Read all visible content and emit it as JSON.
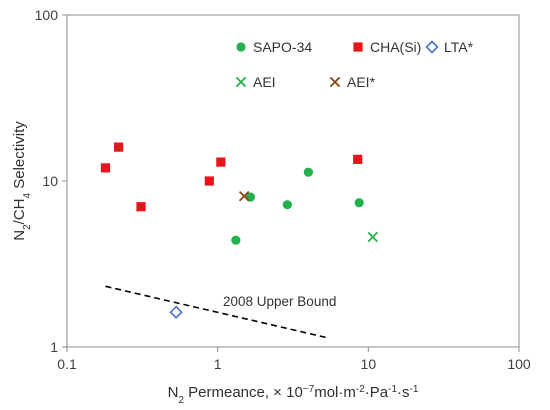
{
  "chart_data": {
    "type": "scatter",
    "x_scale": "log",
    "y_scale": "log",
    "xlim": [
      0.1,
      100
    ],
    "ylim": [
      1,
      100
    ],
    "grid": false,
    "legend_placement": "top-right",
    "x_ticks": [
      "0.1",
      "1",
      "10",
      "100"
    ],
    "y_ticks": [
      "1",
      "10",
      "100"
    ],
    "xlabel_parts": [
      "N",
      "2",
      " Permeance, × 10",
      "−7",
      "mol·m",
      "-2",
      "·Pa",
      "-1",
      "·s",
      "-1"
    ],
    "ylabel_parts": [
      "N",
      "2",
      "/CH",
      "4",
      " Selectivity"
    ],
    "series": [
      {
        "name": "SAPO-34",
        "marker": "circle",
        "color": "#22b14c",
        "points": [
          [
            1.32,
            4.4
          ],
          [
            1.65,
            8.0
          ],
          [
            2.9,
            7.2
          ],
          [
            4.0,
            11.3
          ],
          [
            8.7,
            7.4
          ]
        ]
      },
      {
        "name": "CHA(Si)",
        "marker": "square",
        "color": "#e8141c",
        "points": [
          [
            0.18,
            12.0
          ],
          [
            0.22,
            16.0
          ],
          [
            0.31,
            7.0
          ],
          [
            0.88,
            10.0
          ],
          [
            1.05,
            13.0
          ],
          [
            8.5,
            13.5
          ]
        ]
      },
      {
        "name": "LTA*",
        "marker": "diamond",
        "color": "#4472c4",
        "points": [
          [
            0.53,
            1.62
          ]
        ]
      },
      {
        "name": "AEI",
        "marker": "x",
        "color": "#22b14c",
        "points": [
          [
            10.7,
            4.6
          ]
        ]
      },
      {
        "name": "AEI*",
        "marker": "x",
        "color": "#8b4513",
        "points": [
          [
            1.5,
            8.1
          ]
        ]
      }
    ],
    "upper_bound": {
      "label": "2008 Upper Bound",
      "style": "dashed",
      "color": "#000000",
      "points": [
        [
          0.18,
          2.32
        ],
        [
          5.5,
          1.13
        ]
      ]
    }
  }
}
